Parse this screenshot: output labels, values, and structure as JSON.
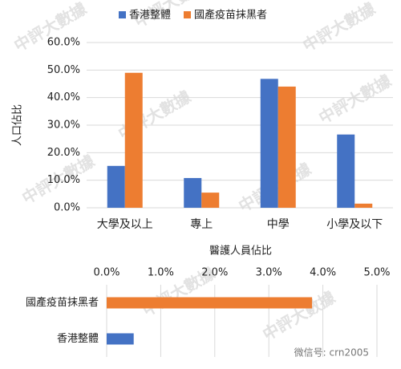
{
  "watermark": "中評大數據",
  "footer": "微信号: crn2005",
  "chart_data": [
    {
      "type": "bar",
      "y_label": "人口佔比",
      "categories": [
        "大學及以上",
        "專上",
        "中學",
        "小學及以下"
      ],
      "series": [
        {
          "name": "香港整體",
          "color": "#4472c4",
          "values": [
            15.2,
            10.8,
            46.8,
            26.6
          ]
        },
        {
          "name": "國產疫苗抹黑者",
          "color": "#ed7d31",
          "values": [
            49.0,
            5.5,
            44.0,
            1.5
          ]
        }
      ],
      "ylim": [
        0,
        60
      ],
      "yticks": [
        {
          "value": 0,
          "label": "0.0%"
        },
        {
          "value": 10,
          "label": "10.0%"
        },
        {
          "value": 20,
          "label": "20.0%"
        },
        {
          "value": 30,
          "label": "30.0%"
        },
        {
          "value": 40,
          "label": "40.0%"
        },
        {
          "value": 50,
          "label": "50.0%"
        },
        {
          "value": 60,
          "label": "60.0%"
        }
      ],
      "grid": true,
      "legend": "top"
    },
    {
      "type": "barh",
      "x_label": "醫護人員佔比",
      "categories": [
        "國產疫苗抹黑者",
        "香港整體"
      ],
      "values": [
        3.8,
        0.5
      ],
      "colors": [
        "#ed7d31",
        "#4472c4"
      ],
      "xlim": [
        0,
        5
      ],
      "xticks": [
        {
          "value": 0,
          "label": "0.0%"
        },
        {
          "value": 1,
          "label": "1.0%"
        },
        {
          "value": 2,
          "label": "2.0%"
        },
        {
          "value": 3,
          "label": "3.0%"
        },
        {
          "value": 4,
          "label": "4.0%"
        },
        {
          "value": 5,
          "label": "5.0%"
        }
      ],
      "grid": true
    }
  ]
}
